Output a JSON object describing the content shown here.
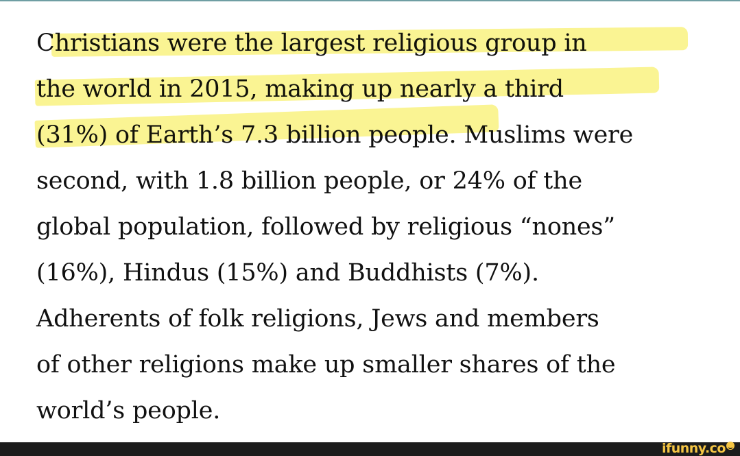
{
  "article": {
    "lines": [
      "Christians were the largest religious group in",
      "the world in 2015, making up nearly a third",
      "(31%) of Earth’s 7.3 billion people. Muslims were",
      "second, with 1.8 billion people, or 24% of the",
      "global population, followed by religious “nones”",
      "(16%), Hindus (15%) and Buddhists (7%).",
      "Adherents of folk religions, Jews and members",
      "of other religions make up smaller shares of the",
      "world’s people."
    ],
    "highlighted_text": "Christians were the largest religious group in the world in 2015, making up nearly a third (31%) of Earth’s 7.3 billion",
    "highlight_color": "#f7ee50",
    "text_color": "#111111"
  },
  "colors": {
    "top_rule": "#6f9ea3",
    "footer_bg": "#1c1c1c",
    "watermark": "#f6c644"
  },
  "footer": {
    "watermark_text": "ifunny.co",
    "watermark_icon": "smiley-icon"
  }
}
